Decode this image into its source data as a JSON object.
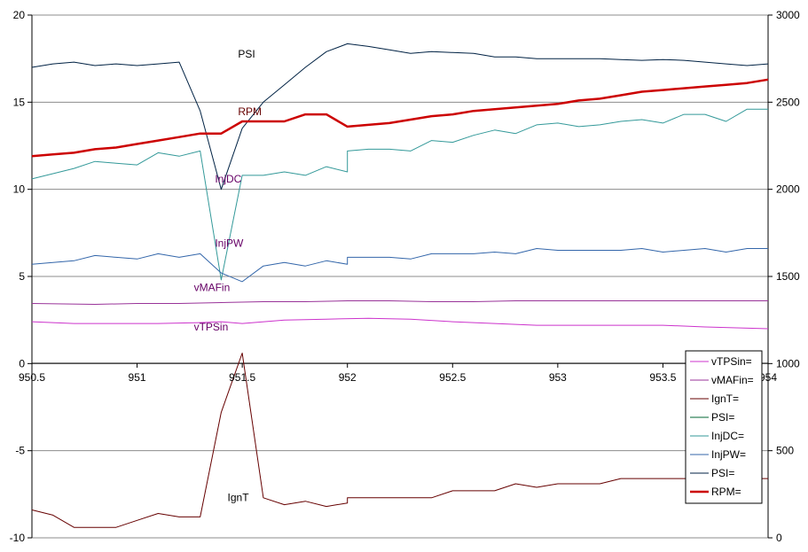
{
  "chart_data": {
    "type": "line",
    "xlim": [
      950.5,
      954
    ],
    "ylim_left": [
      -10,
      20
    ],
    "ylim_right": [
      0,
      3000
    ],
    "grid": "horizontal",
    "legend_position": "right-middle",
    "x_ticks": [
      "950.5",
      "951",
      "951.5",
      "952",
      "952.5",
      "953",
      "953.5",
      "954"
    ],
    "y_left_ticks": [
      "20",
      "15",
      "10",
      "5",
      "0",
      "-5",
      "-10"
    ],
    "y_right_ticks": [
      "3000",
      "2500",
      "2000",
      "1500",
      "1000",
      "500",
      "0"
    ],
    "legend": [
      {
        "label": "vTPSin=",
        "color": "#cc33cc",
        "width": 1
      },
      {
        "label": "vMAFin=",
        "color": "#993399",
        "width": 1
      },
      {
        "label": "IgnT=",
        "color": "#660000",
        "width": 1
      },
      {
        "label": "PSI=",
        "color": "#006633",
        "width": 1
      },
      {
        "label": "InjDC=",
        "color": "#339999",
        "width": 1
      },
      {
        "label": "InjPW=",
        "color": "#3366aa",
        "width": 1
      },
      {
        "label": "PSI=",
        "color": "#002244",
        "width": 1
      },
      {
        "label": "RPM=",
        "color": "#cc0000",
        "width": 2.5
      }
    ],
    "series": [
      {
        "name": "PSI",
        "axis": "left",
        "color": "#002244",
        "width": 1,
        "label": "PSI",
        "label_pos": [
          951.48,
          17.55
        ],
        "label_color": "#000000",
        "x": [
          950.5,
          950.6,
          950.7,
          950.8,
          950.9,
          951.0,
          951.1,
          951.2,
          951.3,
          951.4,
          951.5,
          951.6,
          951.7,
          951.8,
          951.9,
          952.0,
          952.1,
          952.2,
          952.3,
          952.4,
          952.5,
          952.6,
          952.7,
          952.8,
          952.9,
          953.0,
          953.1,
          953.2,
          953.3,
          953.4,
          953.5,
          953.6,
          953.7,
          953.8,
          953.9,
          954.0
        ],
        "y": [
          17.0,
          17.2,
          17.3,
          17.1,
          17.2,
          17.1,
          17.2,
          17.3,
          14.5,
          10.0,
          13.5,
          15.0,
          16.0,
          17.0,
          17.9,
          18.35,
          18.2,
          18.0,
          17.8,
          17.9,
          17.85,
          17.8,
          17.6,
          17.6,
          17.5,
          17.5,
          17.5,
          17.5,
          17.45,
          17.4,
          17.45,
          17.4,
          17.3,
          17.2,
          17.1,
          17.2
        ]
      },
      {
        "name": "RPM",
        "axis": "right",
        "color": "#cc0000",
        "width": 2.5,
        "label": "RPM",
        "label_pos": [
          951.48,
          2425
        ],
        "label_color": "#660000",
        "x": [
          950.5,
          950.6,
          950.7,
          950.8,
          950.9,
          951.0,
          951.1,
          951.2,
          951.3,
          951.4,
          951.5,
          951.6,
          951.7,
          951.8,
          951.9,
          952.0,
          952.1,
          952.2,
          952.3,
          952.4,
          952.5,
          952.6,
          952.7,
          952.8,
          952.9,
          953.0,
          953.1,
          953.2,
          953.3,
          953.4,
          953.5,
          953.6,
          953.7,
          953.8,
          953.9,
          954.0
        ],
        "y": [
          2190,
          2200,
          2210,
          2230,
          2240,
          2260,
          2280,
          2300,
          2320,
          2320,
          2390,
          2390,
          2390,
          2430,
          2430,
          2360,
          2370,
          2380,
          2400,
          2420,
          2430,
          2450,
          2460,
          2470,
          2480,
          2490,
          2510,
          2520,
          2540,
          2560,
          2570,
          2580,
          2590,
          2600,
          2610,
          2630
        ]
      },
      {
        "name": "InjDC",
        "axis": "left",
        "color": "#339999",
        "width": 1,
        "label": "InjDC",
        "label_pos": [
          951.37,
          10.4
        ],
        "label_color": "#660066",
        "x": [
          950.5,
          950.6,
          950.7,
          950.8,
          950.9,
          951.0,
          951.1,
          951.2,
          951.3,
          951.4,
          951.5,
          951.6,
          951.7,
          951.8,
          951.9,
          952.0,
          952.0,
          952.1,
          952.2,
          952.3,
          952.4,
          952.5,
          952.6,
          952.7,
          952.8,
          952.9,
          953.0,
          953.1,
          953.2,
          953.3,
          953.4,
          953.5,
          953.6,
          953.7,
          953.8,
          953.9,
          954.0
        ],
        "y": [
          10.6,
          10.9,
          11.2,
          11.6,
          11.5,
          11.4,
          12.1,
          11.9,
          12.2,
          4.8,
          10.8,
          10.8,
          11.0,
          10.8,
          11.3,
          11.0,
          12.2,
          12.3,
          12.3,
          12.2,
          12.8,
          12.7,
          13.1,
          13.4,
          13.2,
          13.7,
          13.8,
          13.6,
          13.7,
          13.9,
          14.0,
          13.8,
          14.3,
          14.3,
          13.9,
          14.6,
          14.6
        ]
      },
      {
        "name": "InjPW",
        "axis": "left",
        "color": "#3366aa",
        "width": 1,
        "label": "InjPW",
        "label_pos": [
          951.37,
          6.7
        ],
        "label_color": "#660066",
        "x": [
          950.5,
          950.6,
          950.7,
          950.8,
          950.9,
          951.0,
          951.1,
          951.2,
          951.3,
          951.4,
          951.5,
          951.6,
          951.7,
          951.8,
          951.9,
          952.0,
          952.0,
          952.1,
          952.2,
          952.3,
          952.4,
          952.5,
          952.6,
          952.7,
          952.8,
          952.9,
          953.0,
          953.1,
          953.2,
          953.3,
          953.4,
          953.5,
          953.6,
          953.7,
          953.8,
          953.9,
          954.0
        ],
        "y": [
          5.7,
          5.8,
          5.9,
          6.2,
          6.1,
          6.0,
          6.3,
          6.1,
          6.3,
          5.2,
          4.7,
          5.6,
          5.8,
          5.6,
          5.9,
          5.7,
          6.1,
          6.1,
          6.1,
          6.0,
          6.3,
          6.3,
          6.3,
          6.4,
          6.3,
          6.6,
          6.5,
          6.5,
          6.5,
          6.5,
          6.6,
          6.4,
          6.5,
          6.6,
          6.4,
          6.6,
          6.6
        ]
      },
      {
        "name": "vMAFin",
        "axis": "left",
        "color": "#993399",
        "width": 1,
        "label": "vMAFin",
        "label_pos": [
          951.27,
          4.15
        ],
        "label_color": "#660066",
        "x": [
          950.5,
          950.8,
          951.0,
          951.2,
          951.4,
          951.6,
          951.8,
          952.0,
          952.2,
          952.4,
          952.6,
          952.8,
          953.0,
          953.2,
          953.4,
          953.6,
          953.8,
          954.0
        ],
        "y": [
          3.45,
          3.4,
          3.45,
          3.45,
          3.5,
          3.55,
          3.55,
          3.6,
          3.6,
          3.55,
          3.55,
          3.6,
          3.6,
          3.6,
          3.6,
          3.6,
          3.6,
          3.6
        ]
      },
      {
        "name": "vTPSin",
        "axis": "left",
        "color": "#cc33cc",
        "width": 1,
        "label": "vTPSin",
        "label_pos": [
          951.27,
          1.9
        ],
        "label_color": "#660066",
        "x": [
          950.5,
          950.7,
          950.9,
          951.1,
          951.3,
          951.4,
          951.5,
          951.7,
          951.9,
          952.1,
          952.3,
          952.5,
          952.7,
          952.9,
          953.1,
          953.3,
          953.5,
          953.7,
          954.0
        ],
        "y": [
          2.4,
          2.3,
          2.3,
          2.3,
          2.35,
          2.4,
          2.3,
          2.5,
          2.55,
          2.6,
          2.55,
          2.4,
          2.3,
          2.2,
          2.2,
          2.2,
          2.2,
          2.1,
          2.0
        ]
      },
      {
        "name": "IgnT",
        "axis": "left",
        "color": "#660000",
        "width": 1,
        "label": "IgnT",
        "label_pos": [
          951.43,
          -7.9
        ],
        "label_color": "#000000",
        "x": [
          950.5,
          950.6,
          950.7,
          950.8,
          950.9,
          951.0,
          951.1,
          951.2,
          951.3,
          951.4,
          951.5,
          951.6,
          951.7,
          951.8,
          951.9,
          952.0,
          952.0,
          952.1,
          952.2,
          952.3,
          952.4,
          952.5,
          952.6,
          952.7,
          952.8,
          952.9,
          953.0,
          953.1,
          953.2,
          953.3,
          953.4,
          953.5,
          953.6,
          953.7,
          953.8,
          953.9,
          954.0
        ],
        "y": [
          -8.4,
          -8.7,
          -9.4,
          -9.4,
          -9.4,
          -9.0,
          -8.6,
          -8.8,
          -8.8,
          -2.8,
          0.6,
          -7.7,
          -8.1,
          -7.9,
          -8.2,
          -8.0,
          -7.7,
          -7.7,
          -7.7,
          -7.7,
          -7.7,
          -7.3,
          -7.3,
          -7.3,
          -6.9,
          -7.1,
          -6.9,
          -6.9,
          -6.9,
          -6.6,
          -6.6,
          -6.6,
          -6.6,
          -6.6,
          -6.6,
          -6.6,
          -6.6
        ]
      }
    ]
  }
}
